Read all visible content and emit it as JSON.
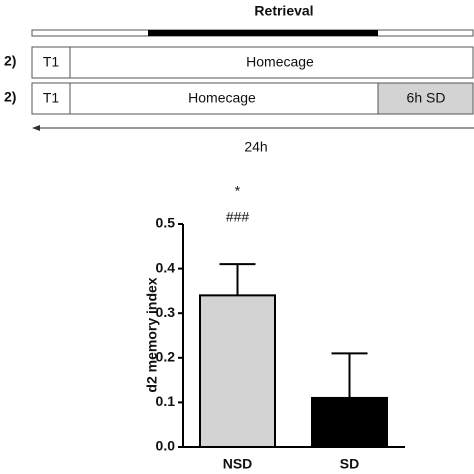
{
  "diagram": {
    "phase": "Retrieval",
    "rows": [
      {
        "label": "2)",
        "cells": [
          "T1",
          "Homecage"
        ]
      },
      {
        "label": "2)",
        "cells": [
          "T1",
          "Homecage",
          "6h SD"
        ]
      }
    ],
    "duration": "24h"
  },
  "chart_data": {
    "type": "bar",
    "y_label": "d2 memory index",
    "categories": [
      "NSD",
      "SD"
    ],
    "values": [
      0.34,
      0.11
    ],
    "errors": [
      0.07,
      0.1
    ],
    "colors": [
      "#d3d3d3",
      "#000000"
    ],
    "annotations": [
      "*",
      "###"
    ],
    "ylim": [
      0,
      0.5
    ],
    "yticks": [
      {
        "value": 0,
        "label": "0.0"
      },
      0.1,
      0.2,
      0.3,
      0.4,
      0.5
    ]
  }
}
